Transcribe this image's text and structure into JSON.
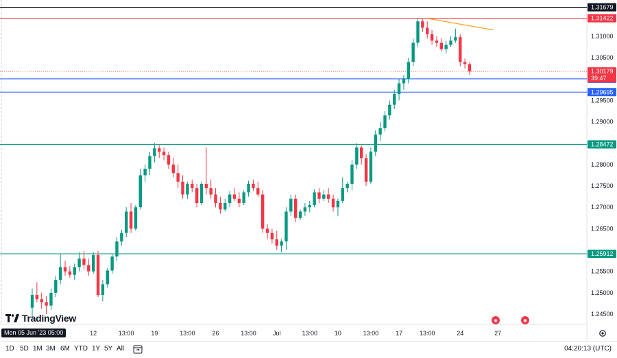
{
  "chart_data": {
    "type": "candlestick",
    "y_axis": {
      "range": [
        1.2426,
        1.3185
      ],
      "ticks": [
        "1.31000",
        "1.30500",
        "1.29500",
        "1.29000",
        "1.28000",
        "1.27500",
        "1.27000",
        "1.26500",
        "1.25500",
        "1.25000",
        "1.24500"
      ]
    },
    "x_axis": {
      "ticks": [
        {
          "label": "12",
          "i": 13
        },
        {
          "label": "13:00",
          "i": 20
        },
        {
          "label": "19",
          "i": 26
        },
        {
          "label": "13:00",
          "i": 33
        },
        {
          "label": "26",
          "i": 39
        },
        {
          "label": "13:00",
          "i": 46
        },
        {
          "label": "Jul",
          "i": 52
        },
        {
          "label": "13:00",
          "i": 59
        },
        {
          "label": "10",
          "i": 65
        },
        {
          "label": "13:00",
          "i": 72
        },
        {
          "label": "17",
          "i": 78
        },
        {
          "label": "13:00",
          "i": 84
        },
        {
          "label": "24",
          "i": 91
        },
        {
          "label": "27",
          "i": 99
        }
      ]
    },
    "ohlc": [
      [
        1.2465,
        1.251,
        1.244,
        1.2495
      ],
      [
        1.2495,
        1.2525,
        1.2478,
        1.2485
      ],
      [
        1.2485,
        1.25,
        1.2462,
        1.2478
      ],
      [
        1.2478,
        1.2492,
        1.245,
        1.247
      ],
      [
        1.247,
        1.251,
        1.246,
        1.25
      ],
      [
        1.25,
        1.254,
        1.249,
        1.253
      ],
      [
        1.253,
        1.259,
        1.252,
        1.256
      ],
      [
        1.256,
        1.2575,
        1.254,
        1.255
      ],
      [
        1.255,
        1.2562,
        1.2535,
        1.2542
      ],
      [
        1.2542,
        1.2568,
        1.253,
        1.256
      ],
      [
        1.256,
        1.2595,
        1.255,
        1.258
      ],
      [
        1.258,
        1.2598,
        1.2555,
        1.2565
      ],
      [
        1.2565,
        1.258,
        1.254,
        1.255
      ],
      [
        1.255,
        1.2595,
        1.2545,
        1.2588
      ],
      [
        1.2588,
        1.2598,
        1.249,
        1.2495
      ],
      [
        1.2495,
        1.253,
        1.248,
        1.252
      ],
      [
        1.252,
        1.2558,
        1.2512,
        1.2552
      ],
      [
        1.2552,
        1.259,
        1.2545,
        1.2585
      ],
      [
        1.2585,
        1.263,
        1.2575,
        1.262
      ],
      [
        1.262,
        1.2648,
        1.261,
        1.264
      ],
      [
        1.264,
        1.27,
        1.263,
        1.269
      ],
      [
        1.269,
        1.271,
        1.264,
        1.265
      ],
      [
        1.265,
        1.2705,
        1.2645,
        1.27
      ],
      [
        1.27,
        1.279,
        1.2695,
        1.2775
      ],
      [
        1.2775,
        1.28,
        1.276,
        1.279
      ],
      [
        1.279,
        1.283,
        1.2775,
        1.282
      ],
      [
        1.282,
        1.285,
        1.2805,
        1.2838
      ],
      [
        1.2838,
        1.2845,
        1.2815,
        1.283
      ],
      [
        1.283,
        1.284,
        1.281,
        1.2822
      ],
      [
        1.2822,
        1.283,
        1.279,
        1.28
      ],
      [
        1.28,
        1.2815,
        1.277,
        1.278
      ],
      [
        1.278,
        1.28,
        1.2745,
        1.276
      ],
      [
        1.276,
        1.2775,
        1.272,
        1.273
      ],
      [
        1.273,
        1.276,
        1.272,
        1.2755
      ],
      [
        1.2755,
        1.2765,
        1.2735,
        1.2745
      ],
      [
        1.2745,
        1.2755,
        1.27,
        1.271
      ],
      [
        1.271,
        1.276,
        1.2705,
        1.2755
      ],
      [
        1.2755,
        1.284,
        1.273,
        1.2745
      ],
      [
        1.2745,
        1.2765,
        1.272,
        1.273
      ],
      [
        1.273,
        1.2745,
        1.27,
        1.271
      ],
      [
        1.271,
        1.2725,
        1.2685,
        1.2695
      ],
      [
        1.2695,
        1.272,
        1.269,
        1.271
      ],
      [
        1.271,
        1.2738,
        1.27,
        1.273
      ],
      [
        1.273,
        1.2745,
        1.2715,
        1.272
      ],
      [
        1.272,
        1.2735,
        1.27,
        1.271
      ],
      [
        1.271,
        1.274,
        1.2705,
        1.2735
      ],
      [
        1.2735,
        1.2762,
        1.2725,
        1.2755
      ],
      [
        1.2755,
        1.2765,
        1.2738,
        1.2745
      ],
      [
        1.2745,
        1.276,
        1.2725,
        1.273
      ],
      [
        1.273,
        1.274,
        1.264,
        1.265
      ],
      [
        1.265,
        1.266,
        1.2625,
        1.264
      ],
      [
        1.264,
        1.265,
        1.2615,
        1.2625
      ],
      [
        1.2625,
        1.2645,
        1.26,
        1.261
      ],
      [
        1.261,
        1.2625,
        1.2595,
        1.262
      ],
      [
        1.262,
        1.27,
        1.26,
        1.269
      ],
      [
        1.269,
        1.273,
        1.268,
        1.272
      ],
      [
        1.272,
        1.273,
        1.2665,
        1.2675
      ],
      [
        1.2675,
        1.2695,
        1.267,
        1.269
      ],
      [
        1.269,
        1.271,
        1.268,
        1.27
      ],
      [
        1.27,
        1.2715,
        1.2688,
        1.2705
      ],
      [
        1.2705,
        1.2742,
        1.27,
        1.2735
      ],
      [
        1.2735,
        1.2745,
        1.271,
        1.272
      ],
      [
        1.272,
        1.274,
        1.2715,
        1.273
      ],
      [
        1.273,
        1.2745,
        1.271,
        1.272
      ],
      [
        1.272,
        1.273,
        1.269,
        1.27
      ],
      [
        1.27,
        1.272,
        1.268,
        1.2715
      ],
      [
        1.2715,
        1.277,
        1.271,
        1.2745
      ],
      [
        1.2745,
        1.276,
        1.2735,
        1.2755
      ],
      [
        1.2755,
        1.281,
        1.274,
        1.28
      ],
      [
        1.28,
        1.285,
        1.279,
        1.284
      ],
      [
        1.284,
        1.2845,
        1.28,
        1.2815
      ],
      [
        1.2815,
        1.2825,
        1.275,
        1.276
      ],
      [
        1.276,
        1.284,
        1.2755,
        1.283
      ],
      [
        1.283,
        1.288,
        1.282,
        1.287
      ],
      [
        1.287,
        1.29,
        1.2855,
        1.2885
      ],
      [
        1.2885,
        1.2925,
        1.2878,
        1.2915
      ],
      [
        1.2915,
        1.295,
        1.2905,
        1.294
      ],
      [
        1.294,
        1.2975,
        1.293,
        1.2965
      ],
      [
        1.2965,
        1.3,
        1.295,
        1.299
      ],
      [
        1.299,
        1.301,
        1.2975,
        1.3
      ],
      [
        1.3,
        1.305,
        1.299,
        1.304
      ],
      [
        1.304,
        1.3095,
        1.303,
        1.3085
      ],
      [
        1.3085,
        1.3142,
        1.3075,
        1.3135
      ],
      [
        1.3135,
        1.314,
        1.311,
        1.312
      ],
      [
        1.312,
        1.3135,
        1.3095,
        1.3105
      ],
      [
        1.3105,
        1.3115,
        1.308,
        1.309
      ],
      [
        1.309,
        1.31,
        1.3075,
        1.3085
      ],
      [
        1.3085,
        1.3095,
        1.3065,
        1.307
      ],
      [
        1.307,
        1.309,
        1.306,
        1.308
      ],
      [
        1.308,
        1.31,
        1.3075,
        1.309
      ],
      [
        1.309,
        1.3118,
        1.3085,
        1.3098
      ],
      [
        1.3098,
        1.3105,
        1.303,
        1.304
      ],
      [
        1.304,
        1.3048,
        1.3025,
        1.3035
      ],
      [
        1.3035,
        1.304,
        1.301,
        1.3018
      ]
    ],
    "horizontal_levels": [
      {
        "price": 1.31679,
        "label": "1.31679",
        "color": "#000000",
        "tag_bg": "#131722"
      },
      {
        "price": 1.31422,
        "label": "1.31422",
        "color": "#f23645",
        "tag_bg": "#f23645"
      },
      {
        "price": 1.30006,
        "label": "1.30006",
        "color": "#2962ff",
        "tag_bg": "#2962ff"
      },
      {
        "price": 1.29695,
        "label": "1.29695",
        "color": "#2962ff",
        "tag_bg": "#2962ff"
      },
      {
        "price": 1.28472,
        "label": "1.28472",
        "color": "#089981",
        "tag_bg": "#089981"
      },
      {
        "price": 1.25912,
        "label": "1.25912",
        "color": "#089981",
        "tag_bg": "#089981"
      }
    ],
    "trendline": {
      "color": "#f7a21b",
      "from": [
        84,
        1.3142
      ],
      "to": [
        98,
        1.3115
      ]
    },
    "last_price": {
      "value": 1.30179,
      "label": "1.30179",
      "countdown": "39:47",
      "color": "#f23645"
    },
    "colors": {
      "up": "#089981",
      "down": "#f23645"
    }
  },
  "footer": {
    "timeframes": [
      "1D",
      "5D",
      "1M",
      "3M",
      "6M",
      "YTD",
      "1Y",
      "5Y",
      "All"
    ],
    "clock": "04:20:13 (UTC)",
    "date_chip": "Mon 05 Jun '23  05:00"
  },
  "logo_text": "TradingView"
}
